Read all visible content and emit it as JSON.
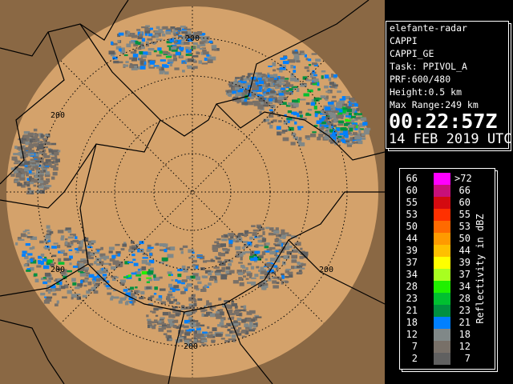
{
  "map": {
    "range_ring_label": "200",
    "colors": {
      "outside": "#8a6844",
      "coverage": "#d4a26b",
      "border": "#000000"
    }
  },
  "info": {
    "radar_name": "elefante-radar",
    "product": "CAPPI",
    "product_id": "CAPPI_GE",
    "task": "Task: PPIVOL_A",
    "prf": "PRF:600/480",
    "height": "Height:0.5 km",
    "max_range": "Max Range:249 km",
    "time": "00:22:57Z",
    "date": "14 FEB 2019 UTC"
  },
  "legend": {
    "unit_label": "Reflectivity in dBZ",
    "rows": [
      {
        "lo": "66",
        "hi": ">72",
        "color": "#ff00ff"
      },
      {
        "lo": "60",
        "hi": "66",
        "color": "#c8107a"
      },
      {
        "lo": "55",
        "hi": "60",
        "color": "#d40a10"
      },
      {
        "lo": "53",
        "hi": "55",
        "color": "#ff3000"
      },
      {
        "lo": "50",
        "hi": "53",
        "color": "#ff6a00"
      },
      {
        "lo": "44",
        "hi": "50",
        "color": "#ff9a00"
      },
      {
        "lo": "39",
        "hi": "44",
        "color": "#ffc000"
      },
      {
        "lo": "37",
        "hi": "39",
        "color": "#ffff00"
      },
      {
        "lo": "34",
        "hi": "37",
        "color": "#a8ff20"
      },
      {
        "lo": "28",
        "hi": "34",
        "color": "#20f000"
      },
      {
        "lo": "23",
        "hi": "28",
        "color": "#00c030"
      },
      {
        "lo": "21",
        "hi": "23",
        "color": "#009040"
      },
      {
        "lo": "18",
        "hi": "21",
        "color": "#0080ff"
      },
      {
        "lo": "12",
        "hi": "18",
        "color": "#808888"
      },
      {
        "lo": "7",
        "hi": "12",
        "color": "#787068"
      },
      {
        "lo": "2",
        "hi": "7",
        "color": "#606060"
      }
    ]
  }
}
